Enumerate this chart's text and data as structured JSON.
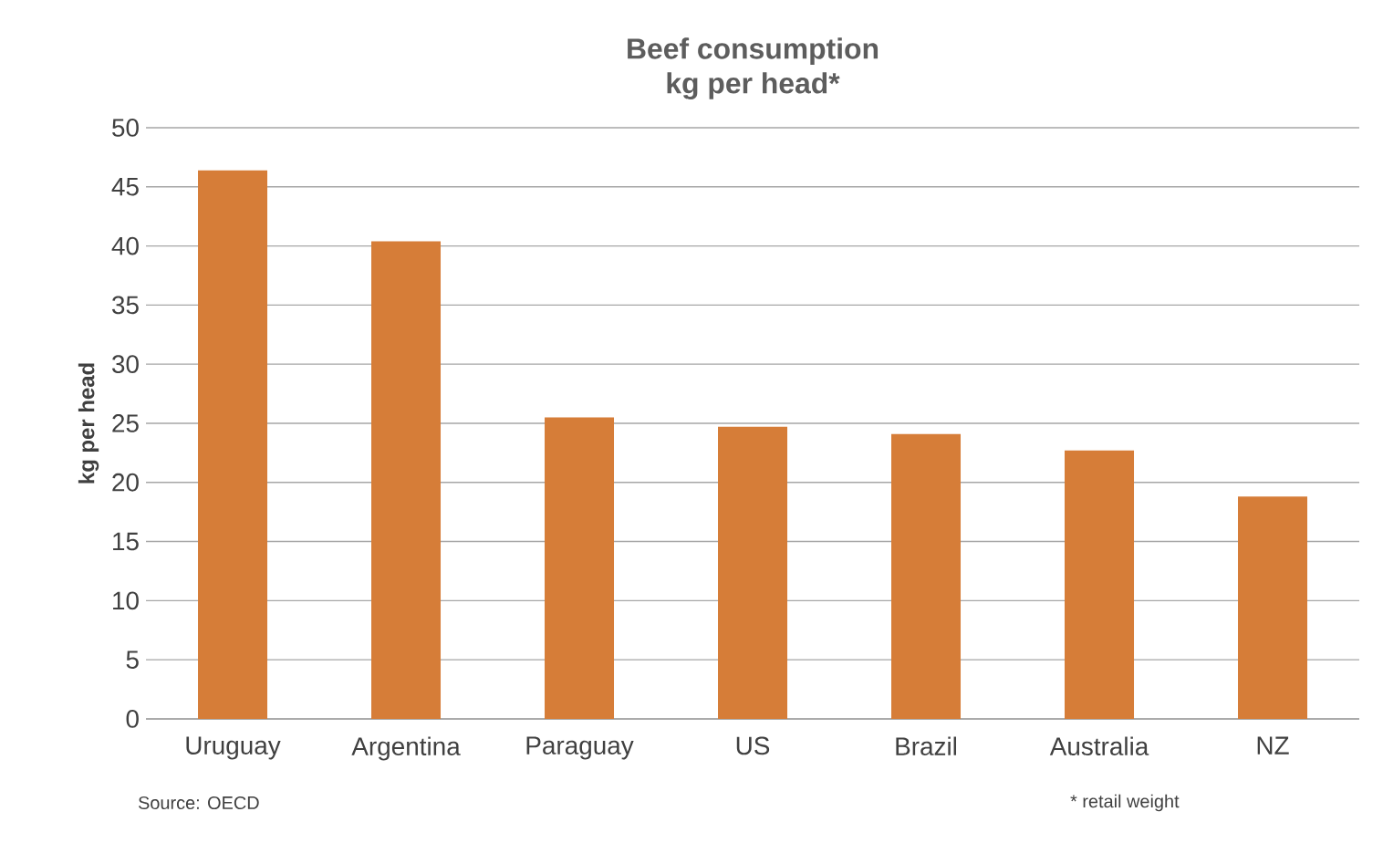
{
  "chart_data": {
    "type": "bar",
    "title": "Beef consumption\nkg per head*",
    "ylabel": "kg per head",
    "categories": [
      "Uruguay",
      "Argentina",
      "Paraguay",
      "US",
      "Brazil",
      "Australia",
      "NZ"
    ],
    "values": [
      46.4,
      40.4,
      25.5,
      24.7,
      24.1,
      22.7,
      18.8
    ],
    "color": "#d67d38",
    "ylim": [
      0,
      50
    ],
    "yticks": [
      0,
      5,
      10,
      15,
      20,
      25,
      30,
      35,
      40,
      45,
      50
    ],
    "grid": "y",
    "annotations": [
      "Source: OECD",
      "* retail weight"
    ]
  }
}
